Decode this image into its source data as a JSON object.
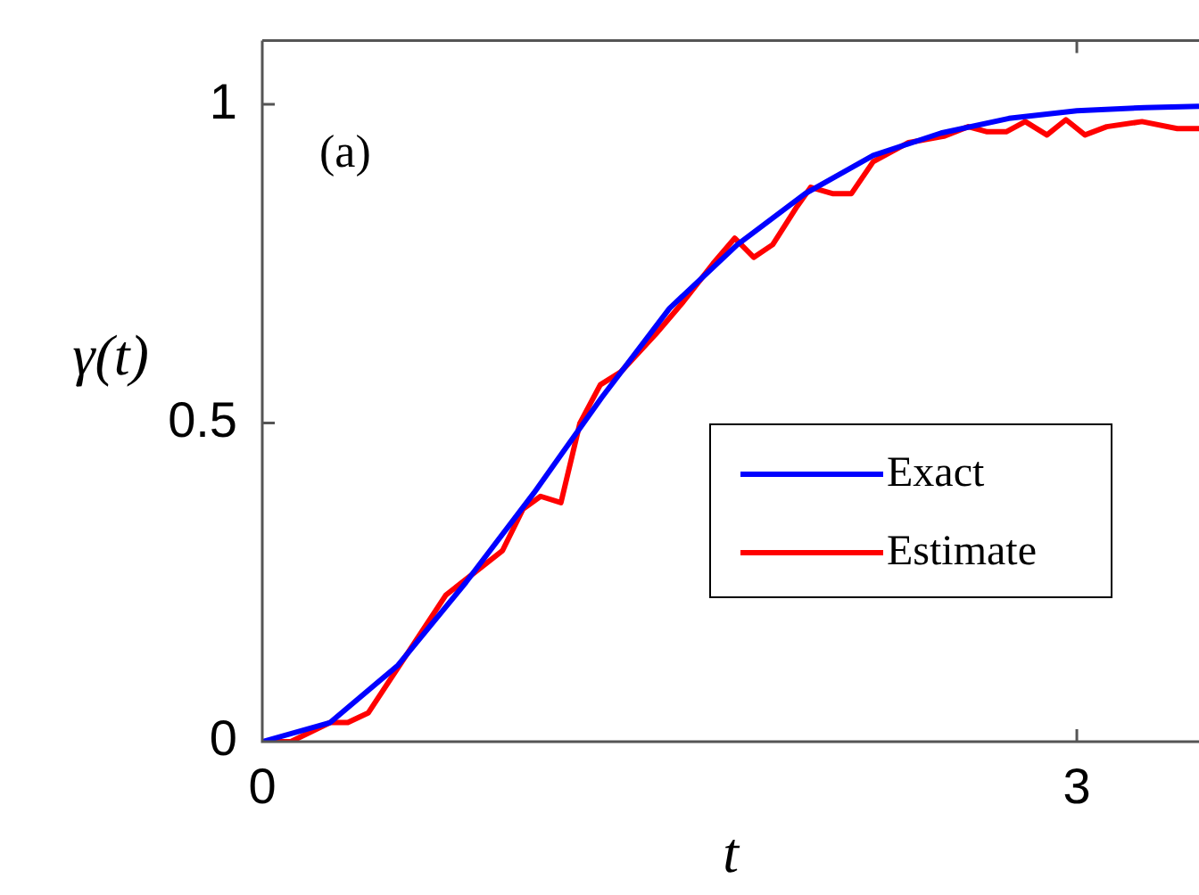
{
  "chart_data": {
    "type": "line",
    "xlabel": "t",
    "ylabel": "γ(t)",
    "annotations": [
      "(a)"
    ],
    "xlim": [
      0,
      3.45
    ],
    "ylim": [
      0,
      1.1
    ],
    "xticks": [
      0,
      3
    ],
    "yticks": [
      0,
      0.5,
      1
    ],
    "grid": false,
    "legend": "right",
    "marker": "none",
    "line_style": "solid",
    "series": [
      {
        "name": "Exact",
        "color": "#0000ff",
        "x": [
          0,
          0.25,
          0.5,
          0.75,
          1,
          1.25,
          1.5,
          1.75,
          2,
          2.25,
          2.5,
          2.75,
          3,
          3.25,
          3.45
        ],
        "values": [
          0,
          0.03,
          0.12,
          0.25,
          0.39,
          0.54,
          0.68,
          0.78,
          0.86,
          0.92,
          0.955,
          0.978,
          0.99,
          0.995,
          0.997
        ]
      },
      {
        "name": "Estimate",
        "color": "#ff0000",
        "x": [
          0,
          0.105,
          0.25,
          0.315,
          0.39,
          0.676,
          0.885,
          0.96,
          1.025,
          1.1,
          1.17,
          1.245,
          1.32,
          1.45,
          1.55,
          1.66,
          1.74,
          1.81,
          1.88,
          1.97,
          2.02,
          2.1,
          2.17,
          2.25,
          2.38,
          2.51,
          2.6,
          2.67,
          2.74,
          2.81,
          2.89,
          2.96,
          3.03,
          3.11,
          3.24,
          3.37,
          3.45
        ],
        "values": [
          0,
          0,
          0.03,
          0.03,
          0.045,
          0.23,
          0.3,
          0.365,
          0.385,
          0.375,
          0.5,
          0.56,
          0.58,
          0.64,
          0.69,
          0.75,
          0.79,
          0.76,
          0.78,
          0.84,
          0.87,
          0.86,
          0.86,
          0.91,
          0.94,
          0.95,
          0.965,
          0.957,
          0.957,
          0.973,
          0.952,
          0.976,
          0.952,
          0.965,
          0.973,
          0.962,
          0.962
        ]
      }
    ]
  }
}
